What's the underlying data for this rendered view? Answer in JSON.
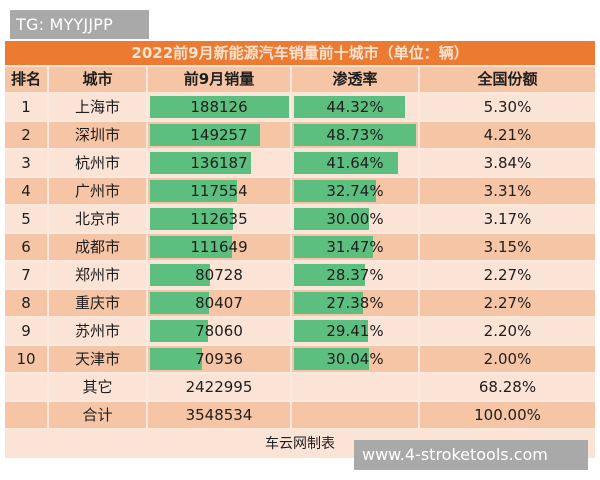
{
  "watermarks": {
    "top": "TG: MYYJJPP",
    "bottom": "www.4-stroketools.com"
  },
  "table": {
    "title": "2022前9月新能源汽车销量前十城市（单位：辆）",
    "headers": [
      "排名",
      "城市",
      "前9月销量",
      "渗透率",
      "全国份额"
    ],
    "rows": [
      {
        "rank": "1",
        "city": "上海市",
        "sales": "188126",
        "penetration": "44.32%",
        "share": "5.30%"
      },
      {
        "rank": "2",
        "city": "深圳市",
        "sales": "149257",
        "penetration": "48.73%",
        "share": "4.21%"
      },
      {
        "rank": "3",
        "city": "杭州市",
        "sales": "136187",
        "penetration": "41.64%",
        "share": "3.84%"
      },
      {
        "rank": "4",
        "city": "广州市",
        "sales": "117554",
        "penetration": "32.74%",
        "share": "3.31%"
      },
      {
        "rank": "5",
        "city": "北京市",
        "sales": "112635",
        "penetration": "30.00%",
        "share": "3.17%"
      },
      {
        "rank": "6",
        "city": "成都市",
        "sales": "111649",
        "penetration": "31.47%",
        "share": "3.15%"
      },
      {
        "rank": "7",
        "city": "郑州市",
        "sales": "80728",
        "penetration": "28.37%",
        "share": "2.27%"
      },
      {
        "rank": "8",
        "city": "重庆市",
        "sales": "80407",
        "penetration": "27.38%",
        "share": "2.27%"
      },
      {
        "rank": "9",
        "city": "苏州市",
        "sales": "78060",
        "penetration": "29.41%",
        "share": "2.20%"
      },
      {
        "rank": "10",
        "city": "天津市",
        "sales": "70936",
        "penetration": "30.04%",
        "share": "2.00%"
      }
    ],
    "others": {
      "label": "其它",
      "sales": "2422995",
      "share": "68.28%"
    },
    "total": {
      "label": "合计",
      "sales": "3548534",
      "share": "100.00%"
    },
    "footer": "车云网制表"
  },
  "colors": {
    "title_bg": "#ec7a31",
    "header_bg": "#f6c5a6",
    "row_light": "#fbe3d6",
    "row_dark": "#f6c5a6",
    "bar": "#5dbf7f"
  },
  "chart_data": {
    "type": "table",
    "title": "2022前9月新能源汽车销量前十城市（单位：辆）",
    "columns": [
      "排名",
      "城市",
      "前9月销量",
      "渗透率",
      "全国份额"
    ],
    "categories": [
      "上海市",
      "深圳市",
      "杭州市",
      "广州市",
      "北京市",
      "成都市",
      "郑州市",
      "重庆市",
      "苏州市",
      "天津市"
    ],
    "series": [
      {
        "name": "前9月销量",
        "values": [
          188126,
          149257,
          136187,
          117554,
          112635,
          111649,
          80728,
          80407,
          78060,
          70936
        ]
      },
      {
        "name": "渗透率 (%)",
        "values": [
          44.32,
          48.73,
          41.64,
          32.74,
          30.0,
          31.47,
          28.37,
          27.38,
          29.41,
          30.04
        ]
      },
      {
        "name": "全国份额 (%)",
        "values": [
          5.3,
          4.21,
          3.84,
          3.31,
          3.17,
          3.15,
          2.27,
          2.27,
          2.2,
          2.0
        ]
      }
    ],
    "others": {
      "sales": 2422995,
      "share": 68.28
    },
    "total": {
      "sales": 3548534,
      "share": 100.0
    },
    "source": "车云网制表"
  }
}
